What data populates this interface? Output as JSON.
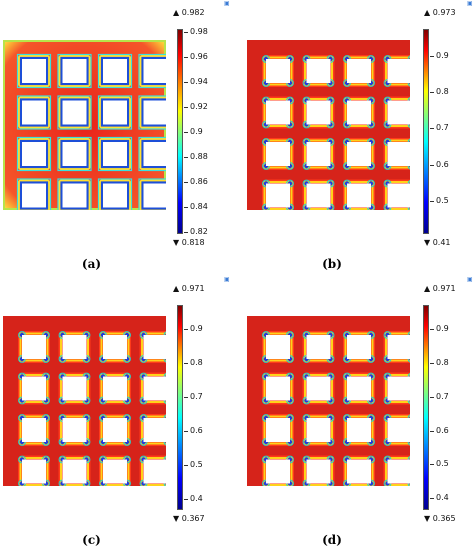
{
  "panels": [
    {
      "id": "a",
      "caption": "(a)",
      "max_label": "▲ 0.982",
      "min_label": "▼ 0.818",
      "ticks": [
        "0.98",
        "0.96",
        "0.94",
        "0.92",
        "0.9",
        "0.88",
        "0.86",
        "0.84",
        "0.82"
      ],
      "tick_values": [
        0.98,
        0.96,
        0.94,
        0.92,
        0.9,
        0.88,
        0.86,
        0.84,
        0.82
      ],
      "min": 0.818,
      "max": 0.982
    },
    {
      "id": "b",
      "caption": "(b)",
      "max_label": "▲ 0.973",
      "min_label": "▼ 0.41",
      "ticks": [
        "0.9",
        "0.8",
        "0.7",
        "0.6",
        "0.5"
      ],
      "tick_values": [
        0.9,
        0.8,
        0.7,
        0.6,
        0.5
      ],
      "min": 0.41,
      "max": 0.973
    },
    {
      "id": "c",
      "caption": "(c)",
      "max_label": "▲ 0.971",
      "min_label": "▼ 0.367",
      "ticks": [
        "0.9",
        "0.8",
        "0.7",
        "0.6",
        "0.5",
        "0.4"
      ],
      "tick_values": [
        0.9,
        0.8,
        0.7,
        0.6,
        0.5,
        0.4
      ],
      "min": 0.367,
      "max": 0.971
    },
    {
      "id": "d",
      "caption": "(d)",
      "max_label": "▲ 0.971",
      "min_label": "▼ 0.365",
      "ticks": [
        "0.9",
        "0.8",
        "0.7",
        "0.6",
        "0.5",
        "0.4"
      ],
      "tick_values": [
        0.9,
        0.8,
        0.7,
        0.6,
        0.5,
        0.4
      ],
      "min": 0.365,
      "max": 0.971
    }
  ],
  "colors": {
    "colormap": [
      "#00008f",
      "#0000ff",
      "#00ffff",
      "#ffff00",
      "#ff0000",
      "#800000"
    ],
    "field_a": "#e82a1c",
    "field_b": "#d4201a"
  },
  "icons": [
    "corner-icon"
  ]
}
